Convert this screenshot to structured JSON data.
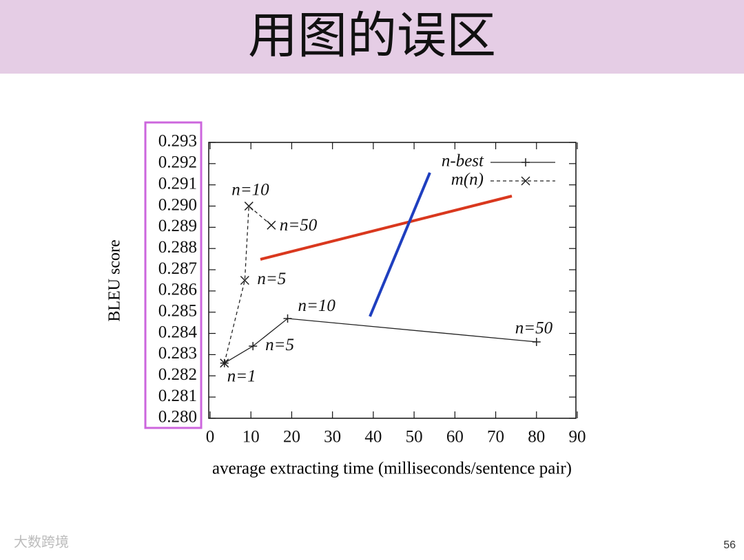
{
  "header": {
    "title": "用图的误区"
  },
  "footer": {
    "watermark": "大数跨境",
    "page_number": "56"
  },
  "chart_data": {
    "type": "line",
    "x_label": "average extracting time (milliseconds/sentence pair)",
    "y_label": "BLEU score",
    "xlim": [
      0,
      90
    ],
    "xticks": [
      0,
      10,
      20,
      30,
      40,
      50,
      60,
      70,
      80,
      90
    ],
    "ylim": [
      0.28,
      0.293
    ],
    "yticks": [
      {
        "value": 0.28,
        "label": "0.280"
      },
      0.281,
      0.282,
      0.283,
      0.284,
      0.285,
      0.286,
      0.287,
      0.288,
      0.289,
      {
        "value": 0.29,
        "label": "0.290"
      },
      0.291,
      0.292,
      0.293
    ],
    "legend": "top-right",
    "series": [
      {
        "name": "n-best",
        "color": "#222222",
        "dash": "solid",
        "marker": "plus",
        "x": [
          3.5,
          10.5,
          19,
          80
        ],
        "values": [
          0.2826,
          0.2834,
          0.2847,
          0.2836
        ],
        "labels": [
          "n=1",
          "n=5",
          "n=10",
          "n=50"
        ]
      },
      {
        "name": "m(n)",
        "color": "#222222",
        "dash": "dashed",
        "marker": "cross",
        "x": [
          3.5,
          8.5,
          9.5,
          15
        ],
        "values": [
          0.2826,
          0.2865,
          0.29,
          0.2891
        ],
        "labels": [
          null,
          "n=5",
          "n=10",
          "n=50"
        ]
      }
    ]
  }
}
